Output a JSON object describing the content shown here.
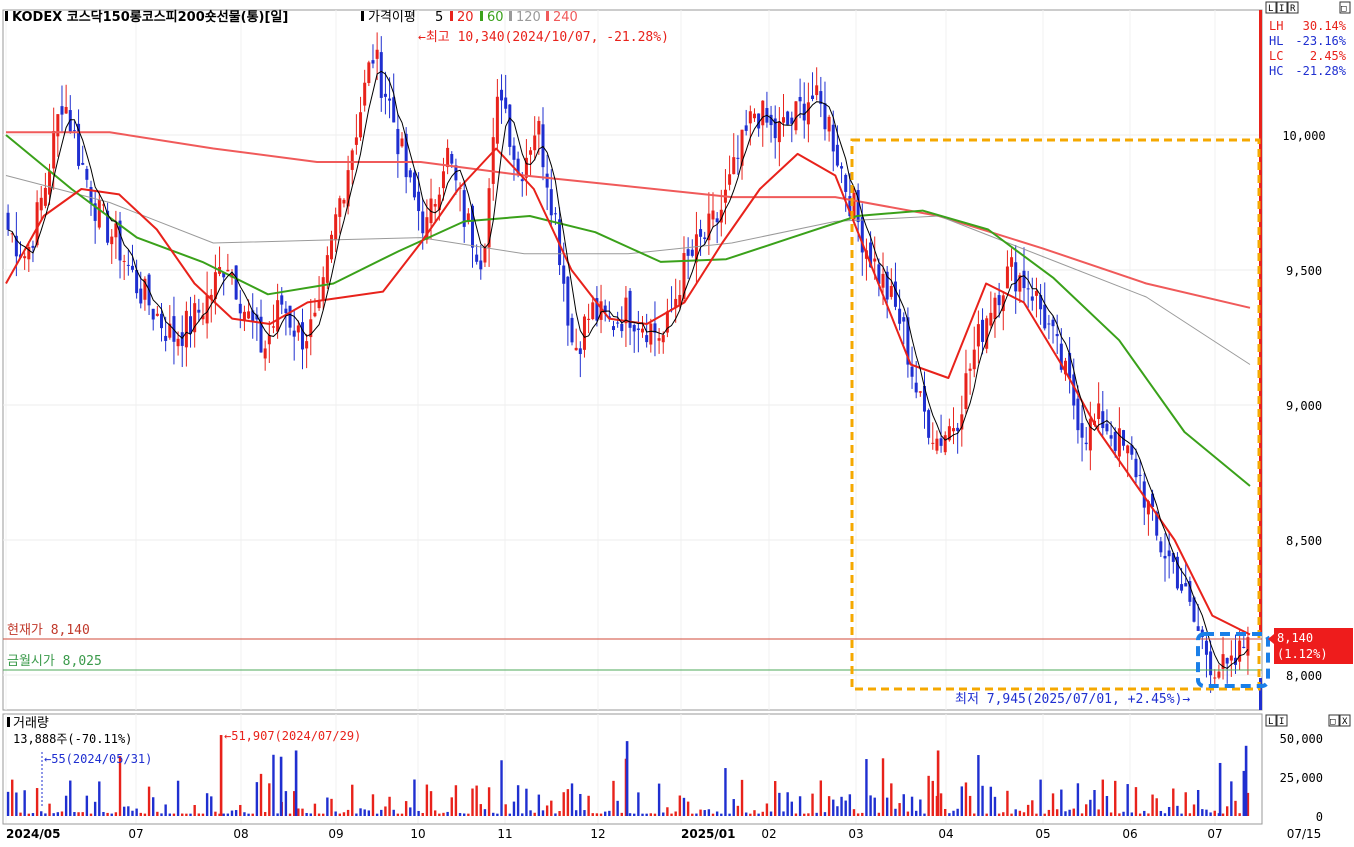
{
  "header": {
    "title": "KODEX 코스닥150롱코스피200숏선물(통)[일]",
    "indicator_label": "가격이평",
    "ma_periods": [
      {
        "label": "5",
        "color": "#000000"
      },
      {
        "label": "20",
        "color": "#e8221b"
      },
      {
        "label": "60",
        "color": "#3aa11a"
      },
      {
        "label": "120",
        "color": "#9a9a9a"
      },
      {
        "label": "240",
        "color": "#f05a5a"
      }
    ]
  },
  "price_panel": {
    "high_annotation": "←최고 10,340(2024/10/07, -21.28%)",
    "low_annotation": "최저 7,945(2025/07/01, +2.45%)→",
    "current_label": "현재가 8,140",
    "open_label": "금월시가 8,025",
    "current_tag_price": "8,140",
    "current_tag_change": "(1.12%)",
    "stats": [
      {
        "label": "LH",
        "value": "30.14%",
        "color": "#e8221b"
      },
      {
        "label": "HL",
        "value": "-23.16%",
        "color": "#1f2fd0"
      },
      {
        "label": "LC",
        "value": "2.45%",
        "color": "#e8221b"
      },
      {
        "label": "HC",
        "value": "-21.28%",
        "color": "#1f2fd0"
      }
    ],
    "toolbar_buttons": [
      "L",
      "I",
      "R",
      "□"
    ]
  },
  "volume_panel": {
    "title": "거래량",
    "current": "13,888주(-70.11%)",
    "max_annotation": "←51,907(2024/07/29)",
    "min_annotation": "←55(2024/05/31)",
    "toolbar_buttons": [
      "L",
      "I",
      "□",
      "X"
    ]
  },
  "colors": {
    "up": "#e8221b",
    "down": "#1f2fd0",
    "highlight_orange": "#f5a800",
    "highlight_blue": "#1a7fe8"
  },
  "chart_data": {
    "type": "candlestick",
    "price_axis": {
      "ticks": [
        10000,
        9500,
        9000,
        8500,
        8000
      ],
      "tick_labels": [
        "10,000",
        "9,500",
        "9,000",
        "8,500",
        "8,000"
      ],
      "range": [
        7880,
        10480
      ]
    },
    "volume_axis": {
      "ticks": [
        50000,
        25000,
        0
      ],
      "tick_labels": [
        "50,000",
        "25,000",
        "0"
      ],
      "range": [
        0,
        55000
      ]
    },
    "x_axis": {
      "labels": [
        "2024/05",
        "07",
        "08",
        "09",
        "10",
        "11",
        "12",
        "2025/01",
        "02",
        "03",
        "04",
        "05",
        "06",
        "07",
        "07/15"
      ],
      "bold": [
        "2024/05",
        "2025/01"
      ]
    },
    "key_points": {
      "high": {
        "date": "2024/10/07",
        "value": 10340
      },
      "low": {
        "date": "2025/07/01",
        "value": 7945
      },
      "current": 8140,
      "month_open": 8025,
      "volume_max": {
        "date": "2024/07/29",
        "value": 51907
      },
      "volume_min": {
        "date": "2024/05/31",
        "value": 55
      }
    },
    "price_path": [
      9650,
      9550,
      9800,
      10150,
      9900,
      9700,
      9600,
      9450,
      9350,
      9250,
      9300,
      9400,
      9550,
      9350,
      9200,
      9380,
      9250,
      9300,
      9700,
      10000,
      10300,
      10100,
      9800,
      9650,
      9950,
      9700,
      9550,
      10200,
      9850,
      10050,
      9700,
      9200,
      9350,
      9300,
      9350,
      9300,
      9250,
      9500,
      9600,
      9700,
      9900,
      10100,
      10000,
      10050,
      10150,
      10050,
      9800,
      9600,
      9450,
      9300,
      9000,
      8870,
      8950,
      9200,
      9400,
      9500,
      9450,
      9300,
      9100,
      8900,
      8950,
      8850,
      8750,
      8500,
      8400,
      8200,
      8050,
      8000,
      8140
    ],
    "moving_averages": {
      "ma20": [
        9450,
        9700,
        9800,
        9780,
        9650,
        9450,
        9320,
        9300,
        9380,
        9400,
        9420,
        9600,
        9800,
        9950,
        9800,
        9500,
        9320,
        9300,
        9380,
        9600,
        9800,
        9930,
        9850,
        9500,
        9150,
        9100,
        9450,
        9380,
        9150,
        8900,
        8700,
        8500,
        8220,
        8150
      ],
      "ma60": [
        10000,
        9800,
        9620,
        9530,
        9410,
        9450,
        9570,
        9680,
        9700,
        9640,
        9530,
        9540,
        9620,
        9700,
        9720,
        9650,
        9470,
        9240,
        8900,
        8700
      ],
      "ma120": [
        9850,
        9750,
        9600,
        9610,
        9620,
        9560,
        9560,
        9600,
        9680,
        9700,
        9550,
        9400,
        9150
      ],
      "ma240": [
        10010,
        10010,
        9950,
        9900,
        9900,
        9850,
        9810,
        9770,
        9770,
        9700,
        9580,
        9450,
        9360
      ]
    }
  }
}
